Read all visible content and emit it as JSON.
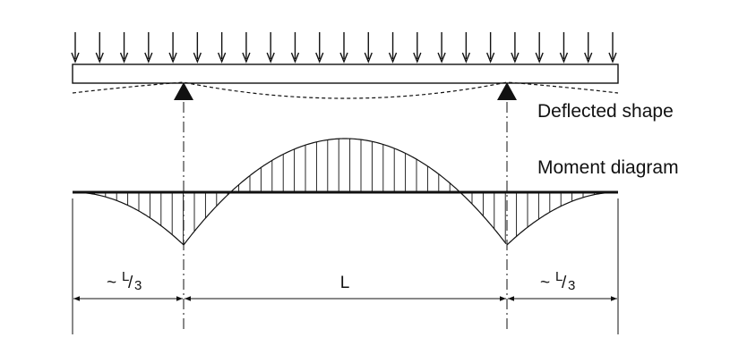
{
  "labels": {
    "deflected_shape": "Deflected shape",
    "moment_diagram": "Moment diagram"
  },
  "dimensions": {
    "left_overhang": {
      "prefix": "~",
      "numerator": "L",
      "slash": "/",
      "denominator": "3"
    },
    "center_span": "L",
    "right_overhang": {
      "prefix": "~",
      "numerator": "L",
      "slash": "/",
      "denominator": "3"
    }
  },
  "load": {
    "type": "uniformly distributed",
    "arrow_count": 23
  },
  "supports": {
    "count": 2,
    "type": "pin"
  },
  "colors": {
    "ink": "#111111",
    "background": "#ffffff"
  }
}
